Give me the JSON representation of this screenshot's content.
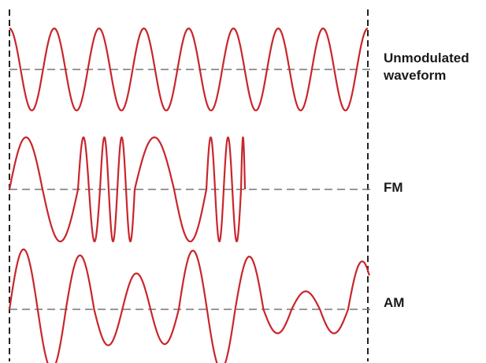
{
  "colors": {
    "wave": "#c8262c",
    "guide": "#222222",
    "baseline": "#777777",
    "label": "#1a1a1a"
  },
  "waveforms": [
    {
      "id": "unmodulated",
      "label_lines": [
        "Unmodulated",
        "waveform"
      ],
      "description": "constant frequency, constant amplitude",
      "cycles": 8
    },
    {
      "id": "fm",
      "label_lines": [
        "FM"
      ],
      "description": "frequency varies, amplitude constant",
      "half_cycle_widths": [
        42,
        45,
        14,
        14,
        11,
        11,
        11,
        11,
        50,
        41,
        11,
        11,
        11,
        11,
        5
      ]
    },
    {
      "id": "am",
      "label_lines": [
        "AM"
      ],
      "description": "amplitude varies, frequency constant",
      "half_cycle_amplitudes": [
        1.0,
        1.0,
        0.9,
        0.6,
        0.6,
        0.58,
        0.98,
        1.0,
        0.88,
        0.4,
        0.3,
        0.4,
        0.8
      ]
    }
  ]
}
